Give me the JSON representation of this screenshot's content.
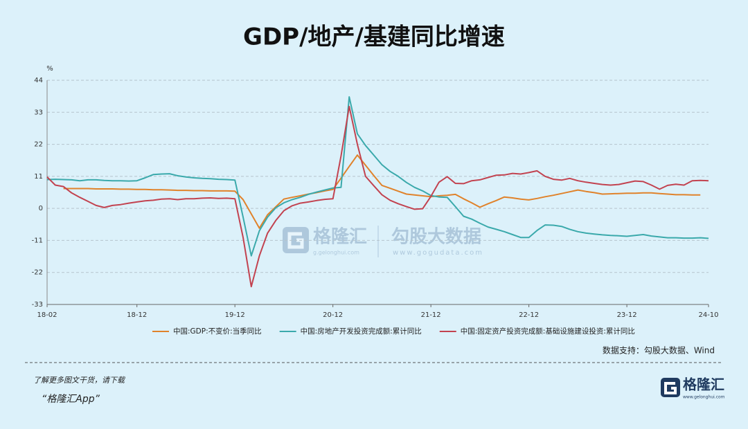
{
  "chart_data": {
    "type": "line",
    "title": "GDP/地产/基建同比增速",
    "y_label": "%",
    "categories": [
      "18-02",
      null,
      null,
      null,
      null,
      null,
      null,
      null,
      null,
      null,
      null,
      "18-12",
      null,
      null,
      null,
      null,
      null,
      null,
      null,
      null,
      null,
      null,
      null,
      "19-12",
      null,
      null,
      null,
      null,
      null,
      null,
      null,
      null,
      null,
      null,
      null,
      "20-12",
      null,
      null,
      null,
      null,
      null,
      null,
      null,
      null,
      null,
      null,
      null,
      "21-12",
      null,
      null,
      null,
      null,
      null,
      null,
      null,
      null,
      null,
      null,
      null,
      "22-12",
      null,
      null,
      null,
      null,
      null,
      null,
      null,
      null,
      null,
      null,
      null,
      "23-12",
      null,
      null,
      null,
      null,
      null,
      null,
      null,
      null,
      null,
      "24-10"
    ],
    "series": [
      {
        "name": "中国:GDP:不变价:当季同比",
        "color": "#e0822a",
        "values": [
          null,
          null,
          6.8,
          6.8,
          6.8,
          6.8,
          6.7,
          6.7,
          6.7,
          6.6,
          6.6,
          6.5,
          6.5,
          6.4,
          6.4,
          6.3,
          6.2,
          6.2,
          6.1,
          6.1,
          6.0,
          6.0,
          6.0,
          5.9,
          3.0,
          -1.9,
          -6.8,
          -2.2,
          0.5,
          3.2,
          3.8,
          4.3,
          4.9,
          5.4,
          6.0,
          6.5,
          10.4,
          14.4,
          18.3,
          14.8,
          11.3,
          7.9,
          6.9,
          5.9,
          4.9,
          4.6,
          4.3,
          4.0,
          4.3,
          4.5,
          4.8,
          3.3,
          1.9,
          0.4,
          1.6,
          2.7,
          3.9,
          3.6,
          3.2,
          2.9,
          3.4,
          4.0,
          4.5,
          5.1,
          5.7,
          6.3,
          5.8,
          5.4,
          4.9,
          5.0,
          5.1,
          5.2,
          5.2,
          5.3,
          5.3,
          5.1,
          4.9,
          4.7,
          4.7,
          4.6,
          4.6,
          null
        ]
      },
      {
        "name": "中国:房地产开发投资完成额:累计同比",
        "color": "#3aa9ab",
        "values": [
          9.9,
          10.0,
          9.9,
          9.8,
          9.5,
          9.8,
          9.8,
          9.6,
          9.5,
          9.5,
          9.4,
          9.5,
          10.5,
          11.6,
          11.8,
          11.9,
          11.2,
          10.8,
          10.5,
          10.3,
          10.2,
          10.0,
          9.9,
          9.7,
          -3.0,
          -16.3,
          -7.7,
          -3.0,
          0.2,
          1.9,
          3.0,
          3.8,
          4.8,
          5.6,
          6.3,
          7.0,
          7.2,
          38.3,
          25.6,
          21.6,
          18.3,
          15.0,
          12.7,
          11.0,
          8.9,
          7.2,
          6.0,
          4.4,
          3.9,
          3.8,
          0.6,
          -2.7,
          -3.7,
          -5.1,
          -6.4,
          -7.2,
          -8.0,
          -9.0,
          -10.0,
          -10.0,
          -7.6,
          -5.7,
          -5.8,
          -6.2,
          -7.2,
          -8.0,
          -8.5,
          -8.8,
          -9.1,
          -9.3,
          -9.4,
          -9.6,
          -9.3,
          -9.0,
          -9.5,
          -9.8,
          -10.1,
          -10.1,
          -10.2,
          -10.2,
          -10.1,
          -10.3
        ]
      },
      {
        "name": "中国:固定资产投资完成额:基础设施建设投资:累计同比",
        "color": "#c2424f",
        "values": [
          10.8,
          8.0,
          7.5,
          5.3,
          3.8,
          2.4,
          1.0,
          0.3,
          1.0,
          1.3,
          1.8,
          2.2,
          2.6,
          2.8,
          3.2,
          3.3,
          3.0,
          3.3,
          3.3,
          3.5,
          3.6,
          3.4,
          3.5,
          3.3,
          -10.0,
          -26.9,
          -16.3,
          -8.5,
          -4.2,
          -0.8,
          0.9,
          1.8,
          2.2,
          2.7,
          3.1,
          3.3,
          18.0,
          35.0,
          22.0,
          11.0,
          7.8,
          4.7,
          2.8,
          1.6,
          0.6,
          -0.3,
          -0.1,
          4.1,
          9.0,
          10.9,
          8.6,
          8.5,
          9.5,
          9.8,
          10.6,
          11.4,
          11.5,
          12.0,
          11.8,
          12.3,
          12.9,
          11.0,
          10.0,
          9.7,
          10.3,
          9.5,
          9.0,
          8.6,
          8.2,
          8.0,
          8.2,
          8.8,
          9.4,
          9.2,
          8.0,
          6.6,
          7.9,
          8.3,
          8.0,
          9.5,
          9.6,
          9.5
        ]
      }
    ],
    "ylim": [
      -33,
      44
    ],
    "yticks": [
      44,
      33,
      22,
      11,
      0,
      -11,
      -22,
      -33
    ],
    "grid": true,
    "legend": "bottom"
  },
  "source": "数据支持：勾股大数据、Wind",
  "watermark": {
    "brand": "格隆汇",
    "brand_url": "g.gelonghui.com",
    "partner": "勾股大数据",
    "partner_url": "www.gogudata.com"
  },
  "footer": {
    "line1": "了解更多图文干货，请下载",
    "line2": "“格隆汇App”",
    "logo": "格隆汇",
    "logo_url": "www.gelonghui.com"
  }
}
